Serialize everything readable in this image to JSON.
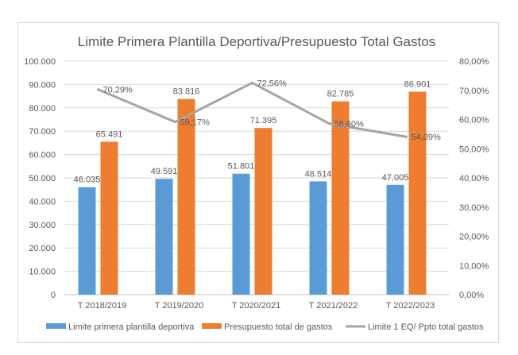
{
  "chart_data": {
    "type": "bar+line",
    "title": "Limite Primera Plantilla Deportiva/Presupuesto Total Gastos",
    "categories": [
      "T 2018/2019",
      "T 2019/2020",
      "T 2020/2021",
      "T 2021/2022",
      "T 2022/2023"
    ],
    "series": [
      {
        "name": "Limite primera plantilla deportiva",
        "type": "bar",
        "axis": "left",
        "color": "#5b9bd5",
        "values": [
          46035,
          49591,
          51801,
          48514,
          47005
        ],
        "labels": [
          "46.035",
          "49.591",
          "51.801",
          "48.514",
          "47.005"
        ]
      },
      {
        "name": "Presupuesto total de gastos",
        "type": "bar",
        "axis": "left",
        "color": "#ed7d31",
        "values": [
          65491,
          83816,
          71395,
          82785,
          86901
        ],
        "labels": [
          "65.491",
          "83.816",
          "71.395",
          "82.785",
          "86.901"
        ]
      },
      {
        "name": "Limite 1 EQ/ Ppto total gastos",
        "type": "line",
        "axis": "right",
        "color": "#a5a5a5",
        "values": [
          70.29,
          59.17,
          72.56,
          58.6,
          54.09
        ],
        "labels": [
          "70,29%",
          "59,17%",
          "72,56%",
          "58,60%",
          "54,09%"
        ]
      }
    ],
    "y_left": {
      "range": [
        0,
        100000
      ],
      "ticks": [
        "0",
        "10.000",
        "20.000",
        "30.000",
        "40.000",
        "50.000",
        "60.000",
        "70.000",
        "80.000",
        "90.000",
        "100.000"
      ]
    },
    "y_right": {
      "range": [
        0,
        80
      ],
      "ticks": [
        "0,00%",
        "10,00%",
        "20,00%",
        "30,00%",
        "40,00%",
        "50,00%",
        "60,00%",
        "70,00%",
        "80,00%"
      ]
    },
    "grid": true,
    "legend": "bottom"
  }
}
